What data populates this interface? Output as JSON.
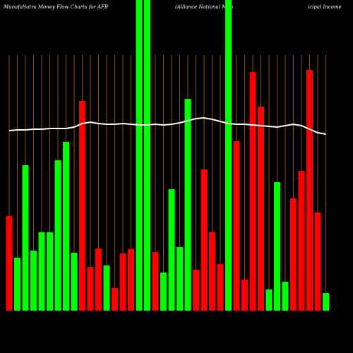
{
  "chart_data": {
    "type": "bar",
    "title_parts": [
      "MunafaSutra  Money Flow  Charts for AFB",
      "(Alliance   National   Mun",
      "icipal Income"
    ],
    "categories": [
      null,
      null,
      null,
      null,
      null,
      null,
      null,
      null,
      null,
      null,
      null,
      null,
      null,
      null,
      null,
      null,
      null,
      null,
      null,
      null,
      null,
      null,
      null,
      null,
      null,
      null,
      null,
      null,
      null,
      null,
      null,
      null,
      null,
      null,
      null,
      null,
      null,
      null,
      null,
      null
    ],
    "values": [
      134,
      75,
      206,
      85,
      111,
      111,
      213,
      239,
      82,
      297,
      62,
      88,
      64,
      32,
      81,
      87,
      440,
      440,
      83,
      54,
      172,
      90,
      300,
      58,
      200,
      111,
      66,
      440,
      240,
      44,
      338,
      289,
      30,
      182,
      41,
      159,
      198,
      341,
      139,
      25
    ],
    "colors": [
      "#ff0000",
      "#00ff00",
      "#00ff00",
      "#00ff00",
      "#00ff00",
      "#00ff00",
      "#00ff00",
      "#00ff00",
      "#00ff00",
      "#ff0000",
      "#ff0000",
      "#ff0000",
      "#00ff00",
      "#ff0000",
      "#ff0000",
      "#ff0000",
      "#00ff00",
      "#00ff00",
      "#ff0000",
      "#00ff00",
      "#00ff00",
      "#00ff00",
      "#00ff00",
      "#ff0000",
      "#ff0000",
      "#ff0000",
      "#ff0000",
      "#00ff00",
      "#ff0000",
      "#ff0000",
      "#ff0000",
      "#ff0000",
      "#00ff00",
      "#00ff00",
      "#00ff00",
      "#ff0000",
      "#ff0000",
      "#ff0000",
      "#ff0000",
      "#00ff00"
    ],
    "line": {
      "color": "#ffffff",
      "values": [
        255,
        256,
        256,
        257,
        257,
        258,
        258,
        258,
        260,
        265,
        267,
        265,
        264,
        264,
        265,
        264,
        263,
        263,
        264,
        263,
        264,
        266,
        269,
        272,
        273,
        271,
        268,
        265,
        264,
        264,
        263,
        262,
        261,
        260,
        262,
        264,
        262,
        257,
        252,
        250
      ]
    },
    "ylim": [
      0,
      440
    ],
    "grid_color": "#b8650a"
  }
}
